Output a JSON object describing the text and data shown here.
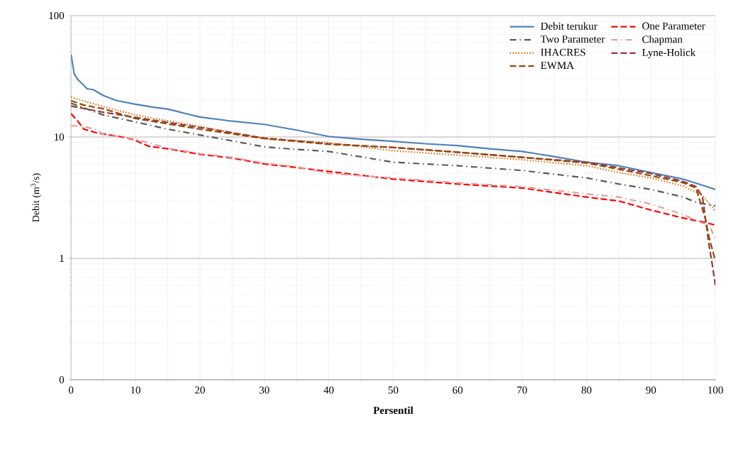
{
  "chart_data": {
    "type": "line",
    "xlabel": "Persentil",
    "ylabel": "Debit (m$^{3}$/s)",
    "log": "y",
    "grid": true,
    "legend": "top right",
    "marker": "none",
    "xlim": [
      0,
      100
    ],
    "xticks": [
      0,
      10,
      20,
      30,
      40,
      50,
      60,
      70,
      80,
      90,
      100
    ],
    "ylim": [
      0.1,
      100
    ],
    "yticks": [
      {
        "value": 0.1,
        "label": "0"
      },
      1,
      10,
      100
    ],
    "series": [
      {
        "name": "Debit terukur",
        "color": "#4f81bd",
        "line_style": "solid",
        "x": [
          0,
          0.5,
          1,
          2.5,
          3.5,
          5,
          7,
          10,
          13,
          15,
          18,
          20,
          25,
          30,
          35,
          40,
          45,
          50,
          55,
          60,
          65,
          70,
          75,
          80,
          85,
          90,
          95,
          98,
          100
        ],
        "values": [
          48,
          33,
          30,
          25,
          24.5,
          22,
          20,
          18.6,
          17.5,
          17,
          15.5,
          14.6,
          13.5,
          12.7,
          11.4,
          10.1,
          9.6,
          9.2,
          8.8,
          8.5,
          8.0,
          7.6,
          6.9,
          6.2,
          5.8,
          5.1,
          4.5,
          4.0,
          3.7
        ]
      },
      {
        "name": "One Parameter",
        "color": "#ff0000",
        "line_style": "dashed",
        "x": [
          0,
          1,
          2,
          4,
          8,
          10,
          12,
          15,
          20,
          25,
          30,
          35,
          40,
          50,
          60,
          70,
          80,
          85,
          90,
          95,
          98,
          100
        ],
        "values": [
          15.6,
          13.6,
          11.6,
          10.8,
          10.0,
          9.4,
          8.4,
          8.0,
          7.2,
          6.7,
          6.0,
          5.6,
          5.2,
          4.5,
          4.1,
          3.8,
          3.2,
          2.97,
          2.5,
          2.15,
          2.0,
          1.88
        ]
      },
      {
        "name": "Two Parameter",
        "color": "#595959",
        "line_style": "dashdot",
        "x": [
          0,
          5,
          10,
          15,
          20,
          30,
          35,
          40,
          50,
          60,
          70,
          80,
          85,
          90,
          95,
          97,
          100
        ],
        "values": [
          19,
          15.2,
          13.3,
          11.6,
          10.4,
          8.3,
          7.9,
          7.6,
          6.2,
          5.8,
          5.3,
          4.6,
          4.1,
          3.7,
          3.2,
          2.9,
          2.7
        ]
      },
      {
        "name": "Chapman",
        "color": "#e6a0a0",
        "line_style": "dashdot",
        "x": [
          0,
          2,
          4,
          5,
          10,
          15,
          20,
          25,
          30,
          35,
          40,
          50,
          60,
          70,
          80,
          85,
          90,
          95,
          98,
          99,
          100
        ],
        "values": [
          12.4,
          12.2,
          11.5,
          10.5,
          9.6,
          8.1,
          7.3,
          6.8,
          6.1,
          5.7,
          5.0,
          4.6,
          4.2,
          3.9,
          3.4,
          3.2,
          2.8,
          2.3,
          1.95,
          1.9,
          1.45
        ]
      },
      {
        "name": "IHACRES",
        "color": "#e46c0a",
        "line_style": "dotted",
        "x": [
          0,
          5,
          10,
          15,
          20,
          30,
          40,
          50,
          60,
          70,
          80,
          85,
          90,
          95,
          98,
          100
        ],
        "values": [
          21.3,
          17.8,
          15.2,
          13.6,
          12.2,
          9.7,
          9.0,
          7.7,
          7.1,
          6.5,
          5.8,
          5.1,
          4.6,
          3.95,
          3.3,
          2.46
        ]
      },
      {
        "name": "Lyne-Holick",
        "color": "#953735",
        "line_style": "dashed",
        "x": [
          0,
          5,
          10,
          20,
          30,
          40,
          50,
          60,
          70,
          80,
          90,
          95,
          97,
          98,
          99,
          99.5,
          100
        ],
        "values": [
          18,
          16,
          14.5,
          12,
          9.8,
          8.8,
          8.2,
          7.5,
          6.8,
          6.2,
          5.0,
          4.3,
          3.9,
          3.2,
          1.3,
          0.9,
          0.6
        ]
      },
      {
        "name": "EWMA",
        "color": "#984807",
        "line_style": "dashed",
        "x": [
          0,
          2,
          5,
          10,
          20,
          30,
          35,
          40,
          50,
          60,
          70,
          80,
          90,
          95,
          97,
          98.5,
          99,
          100
        ],
        "values": [
          19.9,
          18.3,
          17.1,
          14.2,
          11.6,
          9.7,
          9.2,
          8.7,
          8.2,
          7.5,
          6.8,
          6.1,
          4.8,
          4.2,
          3.8,
          2.07,
          1.5,
          0.95
        ]
      }
    ]
  }
}
